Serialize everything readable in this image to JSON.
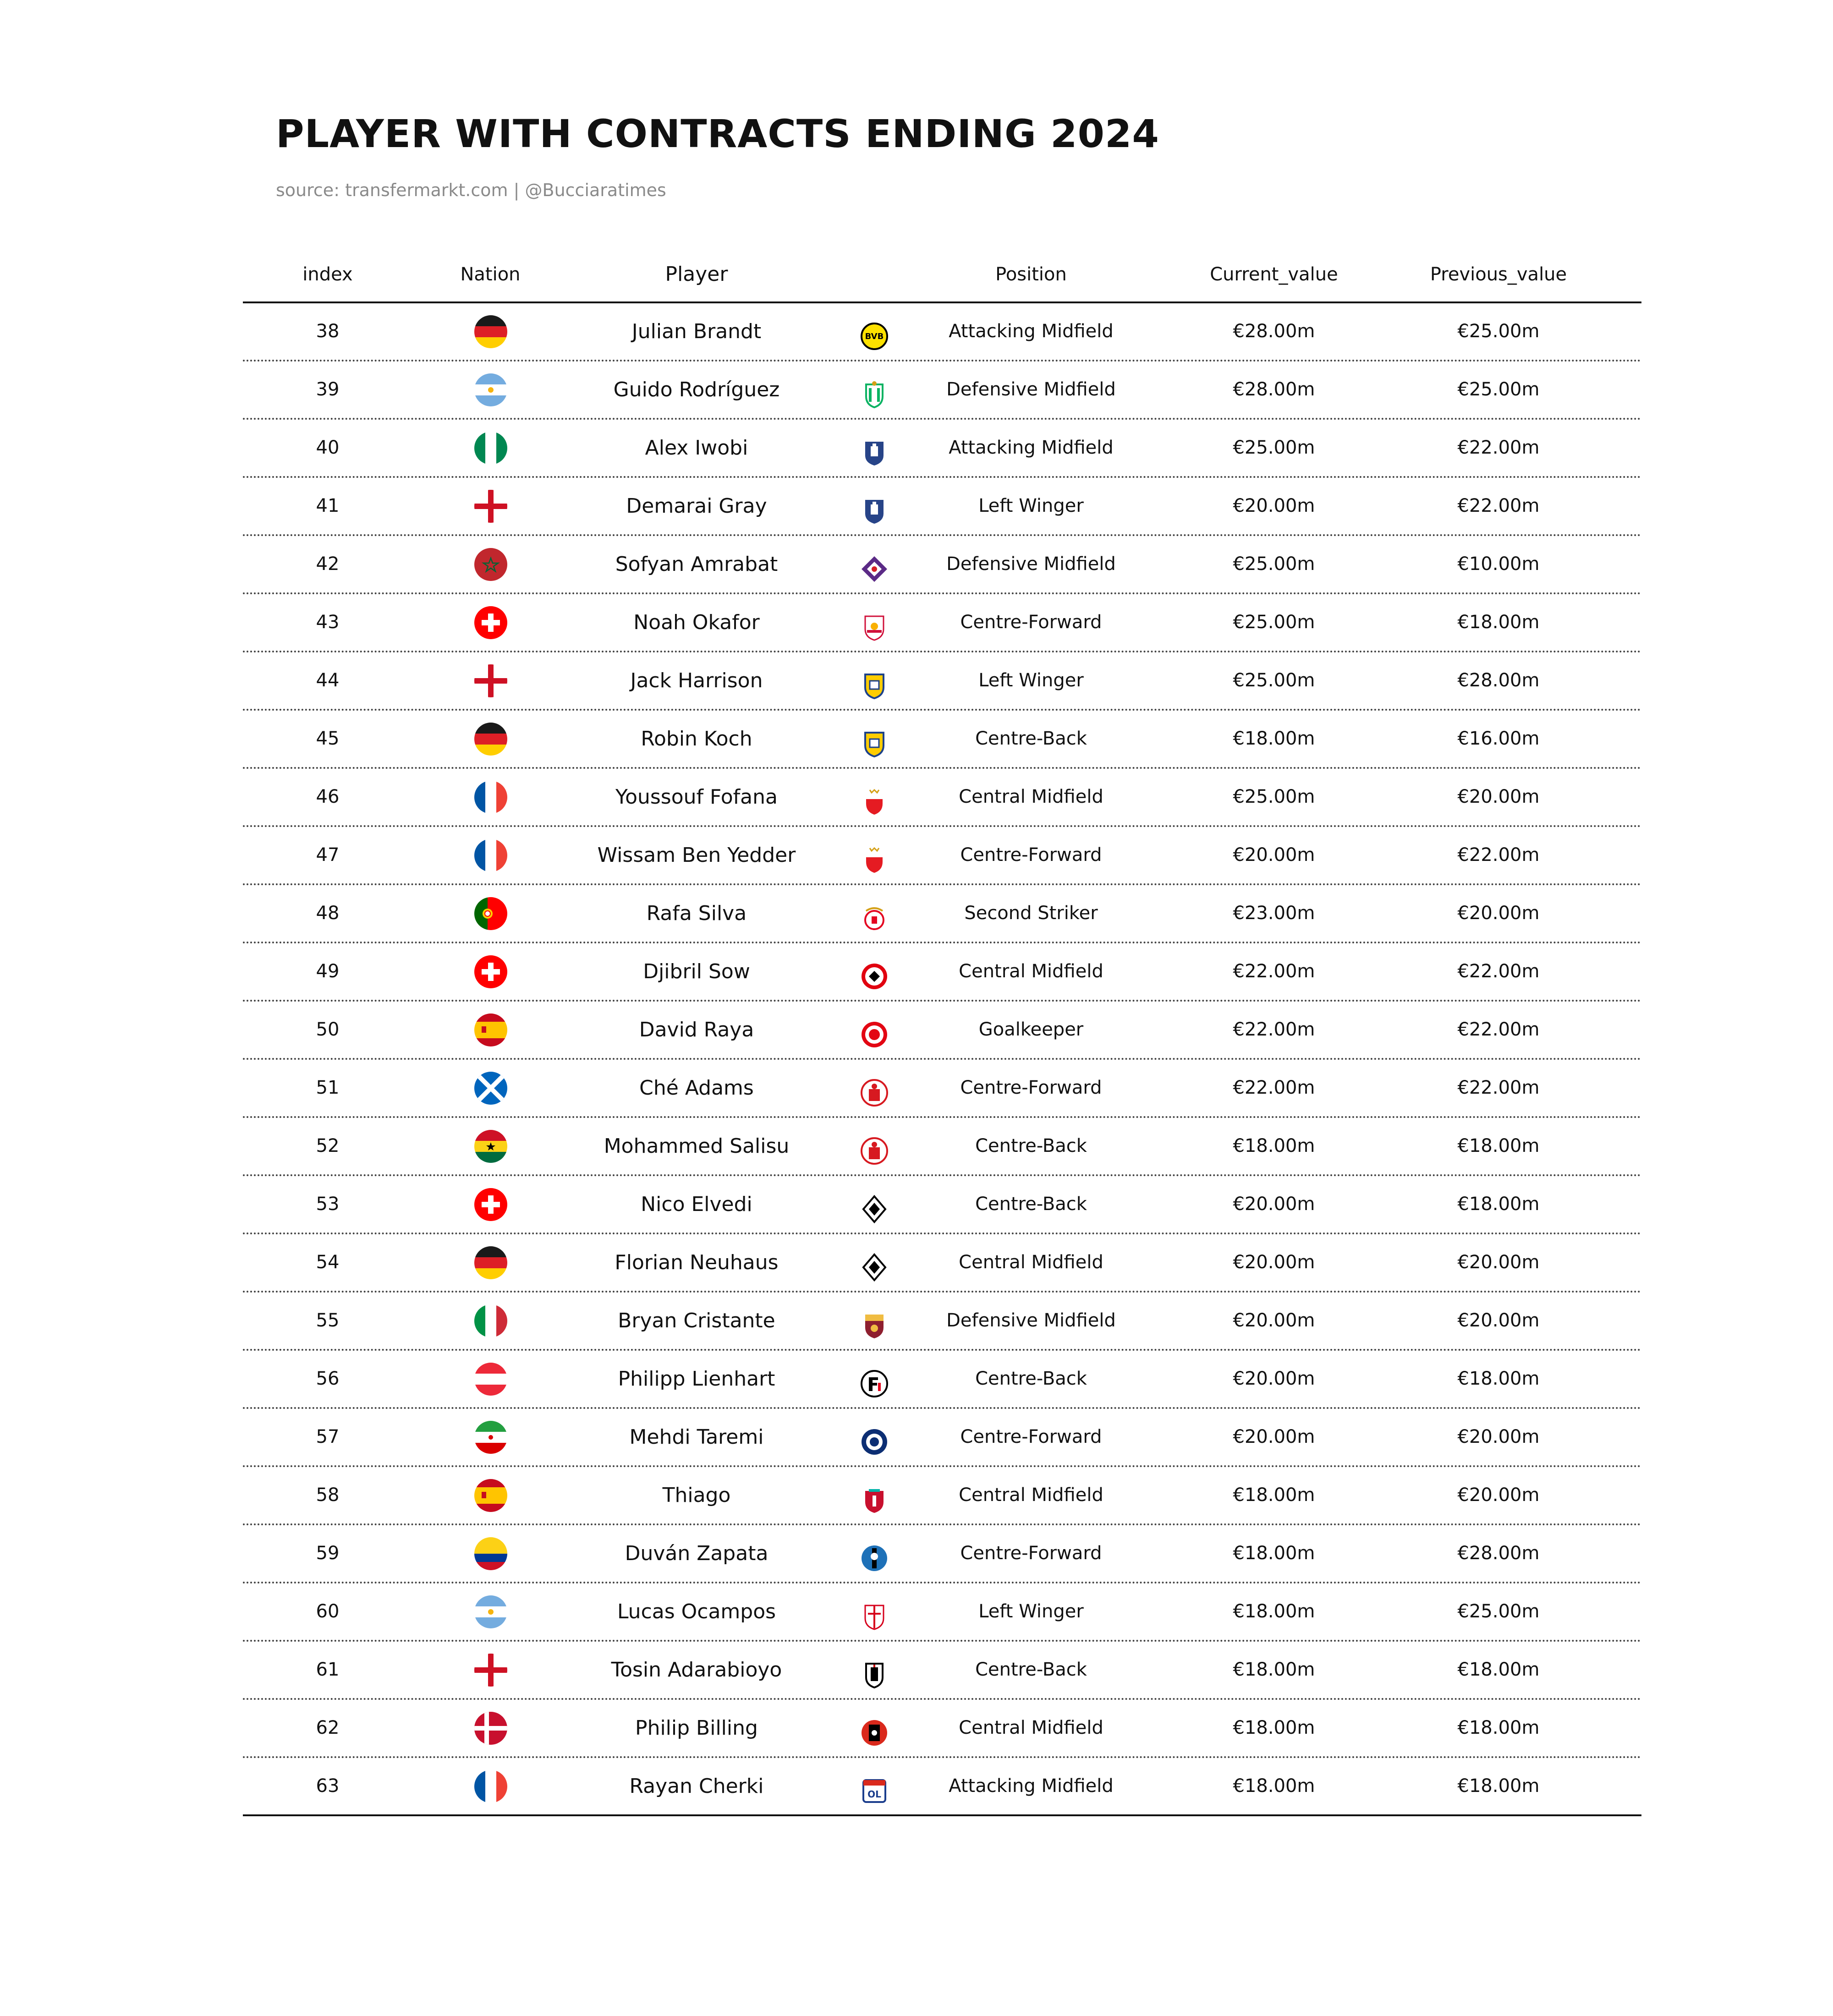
{
  "title": "PLAYER WITH CONTRACTS ENDING 2024",
  "subtitle": "source: transfermarkt.com | @Bucciaratimes",
  "columns": {
    "index": "index",
    "nation": "Nation",
    "player": "Player",
    "position": "Position",
    "current": "Current_value",
    "previous": "Previous_value"
  },
  "chart_data": {
    "type": "table",
    "title": "PLAYER WITH CONTRACTS ENDING 2024",
    "subtitle": "source: transfermarkt.com | @Bucciaratimes",
    "columns": [
      "index",
      "Nation",
      "Player",
      "Position",
      "Current_value",
      "Previous_value"
    ],
    "rows": [
      {
        "index": "38",
        "nation": "germany",
        "player": "Julian Brandt",
        "club": "dortmund",
        "position": "Attacking Midfield",
        "current": "€28.00m",
        "previous": "€25.00m"
      },
      {
        "index": "39",
        "nation": "argentina",
        "player": "Guido Rodríguez",
        "club": "betis",
        "position": "Defensive Midfield",
        "current": "€28.00m",
        "previous": "€25.00m"
      },
      {
        "index": "40",
        "nation": "nigeria",
        "player": "Alex Iwobi",
        "club": "everton",
        "position": "Attacking Midfield",
        "current": "€25.00m",
        "previous": "€22.00m"
      },
      {
        "index": "41",
        "nation": "england",
        "player": "Demarai Gray",
        "club": "everton",
        "position": "Left Winger",
        "current": "€20.00m",
        "previous": "€22.00m"
      },
      {
        "index": "42",
        "nation": "morocco",
        "player": "Sofyan Amrabat",
        "club": "fiorentina",
        "position": "Defensive Midfield",
        "current": "€25.00m",
        "previous": "€10.00m"
      },
      {
        "index": "43",
        "nation": "switzerland",
        "player": "Noah Okafor",
        "club": "salzburg",
        "position": "Centre-Forward",
        "current": "€25.00m",
        "previous": "€18.00m"
      },
      {
        "index": "44",
        "nation": "england",
        "player": "Jack Harrison",
        "club": "leeds",
        "position": "Left Winger",
        "current": "€25.00m",
        "previous": "€28.00m"
      },
      {
        "index": "45",
        "nation": "germany",
        "player": "Robin Koch",
        "club": "leeds",
        "position": "Centre-Back",
        "current": "€18.00m",
        "previous": "€16.00m"
      },
      {
        "index": "46",
        "nation": "france",
        "player": "Youssouf Fofana",
        "club": "monaco",
        "position": "Central Midfield",
        "current": "€25.00m",
        "previous": "€20.00m"
      },
      {
        "index": "47",
        "nation": "france",
        "player": "Wissam Ben Yedder",
        "club": "monaco",
        "position": "Centre-Forward",
        "current": "€20.00m",
        "previous": "€22.00m"
      },
      {
        "index": "48",
        "nation": "portugal",
        "player": "Rafa Silva",
        "club": "benfica",
        "position": "Second Striker",
        "current": "€23.00m",
        "previous": "€20.00m"
      },
      {
        "index": "49",
        "nation": "switzerland",
        "player": "Djibril Sow",
        "club": "frankfurt",
        "position": "Central Midfield",
        "current": "€22.00m",
        "previous": "€22.00m"
      },
      {
        "index": "50",
        "nation": "spain",
        "player": "David Raya",
        "club": "brentford",
        "position": "Goalkeeper",
        "current": "€22.00m",
        "previous": "€22.00m"
      },
      {
        "index": "51",
        "nation": "scotland",
        "player": "Ché Adams",
        "club": "southampton",
        "position": "Centre-Forward",
        "current": "€22.00m",
        "previous": "€22.00m"
      },
      {
        "index": "52",
        "nation": "ghana",
        "player": "Mohammed Salisu",
        "club": "southampton",
        "position": "Centre-Back",
        "current": "€18.00m",
        "previous": "€18.00m"
      },
      {
        "index": "53",
        "nation": "switzerland",
        "player": "Nico Elvedi",
        "club": "gladbach",
        "position": "Centre-Back",
        "current": "€20.00m",
        "previous": "€18.00m"
      },
      {
        "index": "54",
        "nation": "germany",
        "player": "Florian Neuhaus",
        "club": "gladbach",
        "position": "Central Midfield",
        "current": "€20.00m",
        "previous": "€20.00m"
      },
      {
        "index": "55",
        "nation": "italy",
        "player": "Bryan Cristante",
        "club": "roma",
        "position": "Defensive Midfield",
        "current": "€20.00m",
        "previous": "€20.00m"
      },
      {
        "index": "56",
        "nation": "austria",
        "player": "Philipp Lienhart",
        "club": "freiburg",
        "position": "Centre-Back",
        "current": "€20.00m",
        "previous": "€18.00m"
      },
      {
        "index": "57",
        "nation": "iran",
        "player": "Mehdi Taremi",
        "club": "porto",
        "position": "Centre-Forward",
        "current": "€20.00m",
        "previous": "€20.00m"
      },
      {
        "index": "58",
        "nation": "spain",
        "player": "Thiago",
        "club": "liverpool",
        "position": "Central Midfield",
        "current": "€18.00m",
        "previous": "€20.00m"
      },
      {
        "index": "59",
        "nation": "colombia",
        "player": "Duván Zapata",
        "club": "atalanta",
        "position": "Centre-Forward",
        "current": "€18.00m",
        "previous": "€28.00m"
      },
      {
        "index": "60",
        "nation": "argentina",
        "player": "Lucas Ocampos",
        "club": "sevilla",
        "position": "Left Winger",
        "current": "€18.00m",
        "previous": "€25.00m"
      },
      {
        "index": "61",
        "nation": "england",
        "player": "Tosin Adarabioyo",
        "club": "fulham",
        "position": "Centre-Back",
        "current": "€18.00m",
        "previous": "€18.00m"
      },
      {
        "index": "62",
        "nation": "denmark",
        "player": "Philip Billing",
        "club": "bournemouth",
        "position": "Central Midfield",
        "current": "€18.00m",
        "previous": "€18.00m"
      },
      {
        "index": "63",
        "nation": "france",
        "player": "Rayan Cherki",
        "club": "lyon",
        "position": "Attacking Midfield",
        "current": "€18.00m",
        "previous": "€18.00m"
      }
    ]
  }
}
